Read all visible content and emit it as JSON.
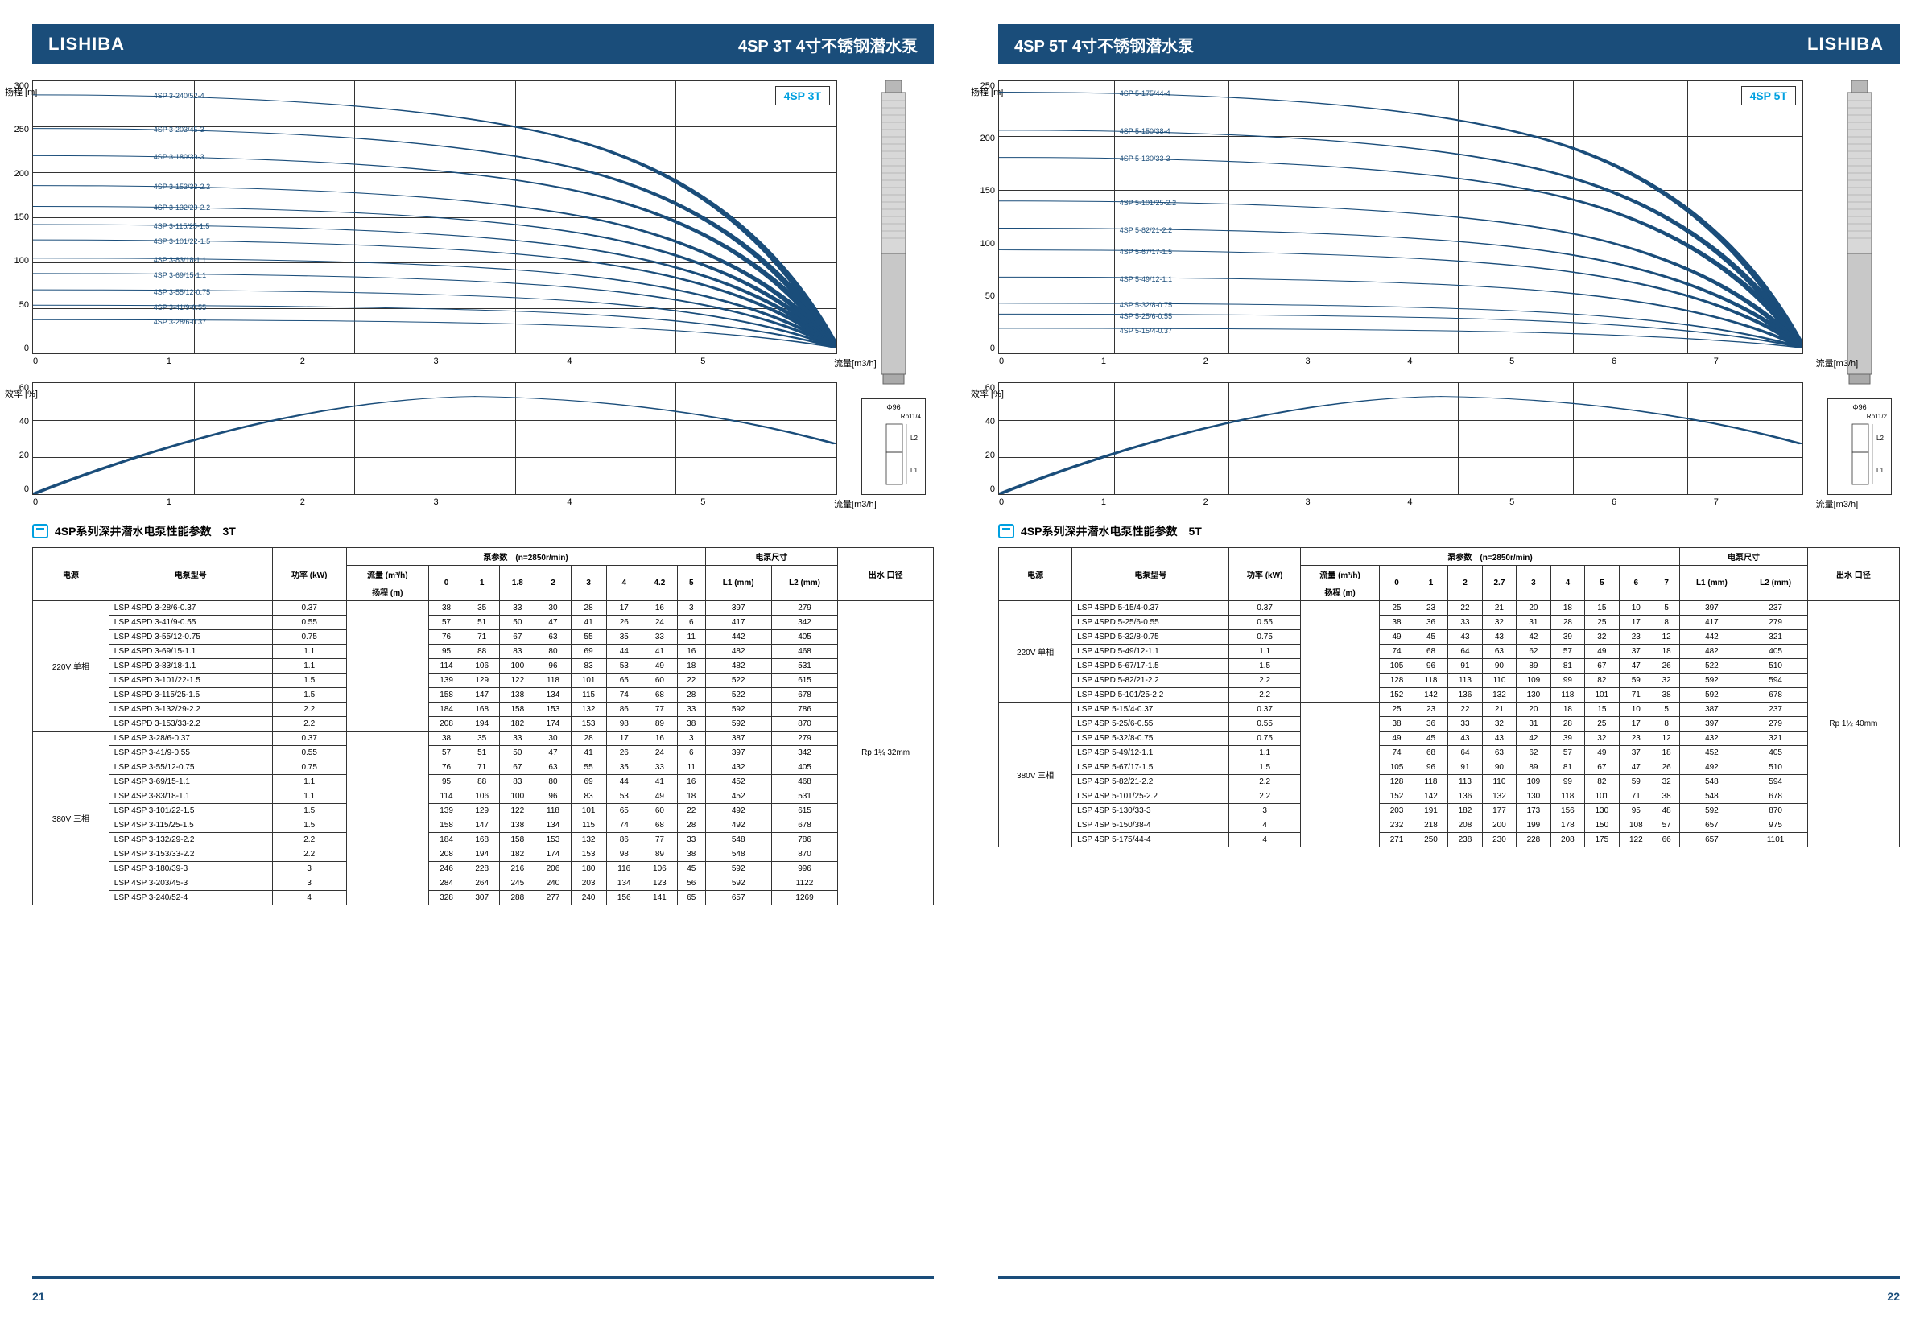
{
  "brand": "LISHIBA",
  "left": {
    "title": "4SP 3T 4寸不锈钢潜水泵",
    "badge": "4SP 3T",
    "section": "4SP系列深井潜水电泵性能参数　3T",
    "page": "21",
    "head_chart": {
      "ylabel": "扬程\n[m]",
      "yticks": [
        "300",
        "250",
        "200",
        "150",
        "100",
        "50",
        "0"
      ],
      "xticks": [
        "0",
        "1",
        "2",
        "3",
        "4",
        "5"
      ],
      "xlabel": "流量[m3/h]",
      "curves": [
        {
          "label": "4SP 3-240/52-4",
          "y0": 285
        },
        {
          "label": "4SP 3-203/45-3",
          "y0": 248
        },
        {
          "label": "4SP 3-180/39-3",
          "y0": 218
        },
        {
          "label": "4SP 3-153/33-2.2",
          "y0": 185
        },
        {
          "label": "4SP 3-132/29-2.2",
          "y0": 162
        },
        {
          "label": "4SP 3-115/25-1.5",
          "y0": 142
        },
        {
          "label": "4SP 3-101/22-1.5",
          "y0": 125
        },
        {
          "label": "4SP 3-83/18-1.1",
          "y0": 105
        },
        {
          "label": "4SP 3-69/15-1.1",
          "y0": 88
        },
        {
          "label": "4SP 3-55/12-0.75",
          "y0": 70
        },
        {
          "label": "4SP 3-41/9-0.55",
          "y0": 53
        },
        {
          "label": "4SP 3-28/6-0.37",
          "y0": 37
        }
      ]
    },
    "eff_chart": {
      "ylabel": "效率\n[%]",
      "yticks": [
        "60",
        "40",
        "20",
        "0"
      ],
      "xticks": [
        "0",
        "1",
        "2",
        "3",
        "4",
        "5"
      ],
      "xlabel": "流量[m3/h]"
    },
    "dim": {
      "phi": "Φ96",
      "rp": "Rp11/4",
      "l1": "L1",
      "l2": "L2"
    },
    "table": {
      "h1": {
        "power": "电源",
        "model": "电泵型号",
        "kw": "功率\n(kW)",
        "pump": "泵参数　(n=2850r/min)",
        "dim": "电泵尺寸",
        "flow": "流量\n(m³/h)",
        "head": "扬程\n(m)",
        "l1": "L1\n(mm)",
        "l2": "L2\n(mm)",
        "outlet": "出水\n口径"
      },
      "flowcols": [
        "0",
        "1",
        "1.8",
        "2",
        "3",
        "4",
        "4.2",
        "5"
      ],
      "groups": [
        {
          "power": "220V\n单相",
          "outlet": "Rp 1¼\n32mm",
          "rows": [
            [
              "LSP 4SPD 3-28/6-0.37",
              "0.37",
              "38",
              "35",
              "33",
              "30",
              "28",
              "17",
              "16",
              "3",
              "397",
              "279"
            ],
            [
              "LSP 4SPD 3-41/9-0.55",
              "0.55",
              "57",
              "51",
              "50",
              "47",
              "41",
              "26",
              "24",
              "6",
              "417",
              "342"
            ],
            [
              "LSP 4SPD 3-55/12-0.75",
              "0.75",
              "76",
              "71",
              "67",
              "63",
              "55",
              "35",
              "33",
              "11",
              "442",
              "405"
            ],
            [
              "LSP 4SPD 3-69/15-1.1",
              "1.1",
              "95",
              "88",
              "83",
              "80",
              "69",
              "44",
              "41",
              "16",
              "482",
              "468"
            ],
            [
              "LSP 4SPD 3-83/18-1.1",
              "1.1",
              "114",
              "106",
              "100",
              "96",
              "83",
              "53",
              "49",
              "18",
              "482",
              "531"
            ],
            [
              "LSP 4SPD 3-101/22-1.5",
              "1.5",
              "139",
              "129",
              "122",
              "118",
              "101",
              "65",
              "60",
              "22",
              "522",
              "615"
            ],
            [
              "LSP 4SPD 3-115/25-1.5",
              "1.5",
              "158",
              "147",
              "138",
              "134",
              "115",
              "74",
              "68",
              "28",
              "522",
              "678"
            ],
            [
              "LSP 4SPD 3-132/29-2.2",
              "2.2",
              "184",
              "168",
              "158",
              "153",
              "132",
              "86",
              "77",
              "33",
              "592",
              "786"
            ],
            [
              "LSP 4SPD 3-153/33-2.2",
              "2.2",
              "208",
              "194",
              "182",
              "174",
              "153",
              "98",
              "89",
              "38",
              "592",
              "870"
            ]
          ]
        },
        {
          "power": "380V\n三相",
          "rows": [
            [
              "LSP 4SP 3-28/6-0.37",
              "0.37",
              "38",
              "35",
              "33",
              "30",
              "28",
              "17",
              "16",
              "3",
              "387",
              "279"
            ],
            [
              "LSP 4SP 3-41/9-0.55",
              "0.55",
              "57",
              "51",
              "50",
              "47",
              "41",
              "26",
              "24",
              "6",
              "397",
              "342"
            ],
            [
              "LSP 4SP 3-55/12-0.75",
              "0.75",
              "76",
              "71",
              "67",
              "63",
              "55",
              "35",
              "33",
              "11",
              "432",
              "405"
            ],
            [
              "LSP 4SP 3-69/15-1.1",
              "1.1",
              "95",
              "88",
              "83",
              "80",
              "69",
              "44",
              "41",
              "16",
              "452",
              "468"
            ],
            [
              "LSP 4SP 3-83/18-1.1",
              "1.1",
              "114",
              "106",
              "100",
              "96",
              "83",
              "53",
              "49",
              "18",
              "452",
              "531"
            ],
            [
              "LSP 4SP 3-101/22-1.5",
              "1.5",
              "139",
              "129",
              "122",
              "118",
              "101",
              "65",
              "60",
              "22",
              "492",
              "615"
            ],
            [
              "LSP 4SP 3-115/25-1.5",
              "1.5",
              "158",
              "147",
              "138",
              "134",
              "115",
              "74",
              "68",
              "28",
              "492",
              "678"
            ],
            [
              "LSP 4SP 3-132/29-2.2",
              "2.2",
              "184",
              "168",
              "158",
              "153",
              "132",
              "86",
              "77",
              "33",
              "548",
              "786"
            ],
            [
              "LSP 4SP 3-153/33-2.2",
              "2.2",
              "208",
              "194",
              "182",
              "174",
              "153",
              "98",
              "89",
              "38",
              "548",
              "870"
            ],
            [
              "LSP 4SP 3-180/39-3",
              "3",
              "246",
              "228",
              "216",
              "206",
              "180",
              "116",
              "106",
              "45",
              "592",
              "996"
            ],
            [
              "LSP 4SP 3-203/45-3",
              "3",
              "284",
              "264",
              "245",
              "240",
              "203",
              "134",
              "123",
              "56",
              "592",
              "1122"
            ],
            [
              "LSP 4SP 3-240/52-4",
              "4",
              "328",
              "307",
              "288",
              "277",
              "240",
              "156",
              "141",
              "65",
              "657",
              "1269"
            ]
          ]
        }
      ]
    }
  },
  "right": {
    "title": "4SP 5T 4寸不锈钢潜水泵",
    "badge": "4SP 5T",
    "section": "4SP系列深井潜水电泵性能参数　5T",
    "page": "22",
    "head_chart": {
      "ylabel": "扬程\n[m]",
      "yticks": [
        "250",
        "200",
        "150",
        "100",
        "50",
        "0"
      ],
      "xticks": [
        "0",
        "1",
        "2",
        "3",
        "4",
        "5",
        "6",
        "7"
      ],
      "xlabel": "流量[m3/h]",
      "curves": [
        {
          "label": "4SP 5-175/44-4",
          "y0": 240
        },
        {
          "label": "4SP 5-150/38-4",
          "y0": 205
        },
        {
          "label": "4SP 5-130/33-3",
          "y0": 180
        },
        {
          "label": "4SP 5-101/25-2.2",
          "y0": 140
        },
        {
          "label": "4SP 5-82/21-2.2",
          "y0": 115
        },
        {
          "label": "4SP 5-67/17-1.5",
          "y0": 95
        },
        {
          "label": "4SP 5-49/12-1.1",
          "y0": 70
        },
        {
          "label": "4SP 5-32/8-0.75",
          "y0": 46
        },
        {
          "label": "4SP 5-25/6-0.55",
          "y0": 36
        },
        {
          "label": "4SP 5-15/4-0.37",
          "y0": 23
        }
      ]
    },
    "eff_chart": {
      "ylabel": "效率\n[%]",
      "yticks": [
        "60",
        "40",
        "20",
        "0"
      ],
      "xticks": [
        "0",
        "1",
        "2",
        "3",
        "4",
        "5",
        "6",
        "7"
      ],
      "xlabel": "流量[m3/h]"
    },
    "dim": {
      "phi": "Φ96",
      "rp": "Rp11/2",
      "l1": "L1",
      "l2": "L2"
    },
    "table": {
      "h1": {
        "power": "电源",
        "model": "电泵型号",
        "kw": "功率\n(kW)",
        "pump": "泵参数　(n=2850r/min)",
        "dim": "电泵尺寸",
        "flow": "流量\n(m³/h)",
        "head": "扬程\n(m)",
        "l1": "L1\n(mm)",
        "l2": "L2\n(mm)",
        "outlet": "出水\n口径"
      },
      "flowcols": [
        "0",
        "1",
        "2",
        "2.7",
        "3",
        "4",
        "5",
        "6",
        "7"
      ],
      "groups": [
        {
          "power": "220V\n单相",
          "outlet": "Rp 1½\n40mm",
          "rows": [
            [
              "LSP 4SPD 5-15/4-0.37",
              "0.37",
              "25",
              "23",
              "22",
              "21",
              "20",
              "18",
              "15",
              "10",
              "5",
              "397",
              "237"
            ],
            [
              "LSP 4SPD 5-25/6-0.55",
              "0.55",
              "38",
              "36",
              "33",
              "32",
              "31",
              "28",
              "25",
              "17",
              "8",
              "417",
              "279"
            ],
            [
              "LSP 4SPD 5-32/8-0.75",
              "0.75",
              "49",
              "45",
              "43",
              "43",
              "42",
              "39",
              "32",
              "23",
              "12",
              "442",
              "321"
            ],
            [
              "LSP 4SPD 5-49/12-1.1",
              "1.1",
              "74",
              "68",
              "64",
              "63",
              "62",
              "57",
              "49",
              "37",
              "18",
              "482",
              "405"
            ],
            [
              "LSP 4SPD 5-67/17-1.5",
              "1.5",
              "105",
              "96",
              "91",
              "90",
              "89",
              "81",
              "67",
              "47",
              "26",
              "522",
              "510"
            ],
            [
              "LSP 4SPD 5-82/21-2.2",
              "2.2",
              "128",
              "118",
              "113",
              "110",
              "109",
              "99",
              "82",
              "59",
              "32",
              "592",
              "594"
            ],
            [
              "LSP 4SPD 5-101/25-2.2",
              "2.2",
              "152",
              "142",
              "136",
              "132",
              "130",
              "118",
              "101",
              "71",
              "38",
              "592",
              "678"
            ]
          ]
        },
        {
          "power": "380V\n三相",
          "rows": [
            [
              "LSP 4SP 5-15/4-0.37",
              "0.37",
              "25",
              "23",
              "22",
              "21",
              "20",
              "18",
              "15",
              "10",
              "5",
              "387",
              "237"
            ],
            [
              "LSP 4SP 5-25/6-0.55",
              "0.55",
              "38",
              "36",
              "33",
              "32",
              "31",
              "28",
              "25",
              "17",
              "8",
              "397",
              "279"
            ],
            [
              "LSP 4SP 5-32/8-0.75",
              "0.75",
              "49",
              "45",
              "43",
              "43",
              "42",
              "39",
              "32",
              "23",
              "12",
              "432",
              "321"
            ],
            [
              "LSP 4SP 5-49/12-1.1",
              "1.1",
              "74",
              "68",
              "64",
              "63",
              "62",
              "57",
              "49",
              "37",
              "18",
              "452",
              "405"
            ],
            [
              "LSP 4SP 5-67/17-1.5",
              "1.5",
              "105",
              "96",
              "91",
              "90",
              "89",
              "81",
              "67",
              "47",
              "26",
              "492",
              "510"
            ],
            [
              "LSP 4SP 5-82/21-2.2",
              "2.2",
              "128",
              "118",
              "113",
              "110",
              "109",
              "99",
              "82",
              "59",
              "32",
              "548",
              "594"
            ],
            [
              "LSP 4SP 5-101/25-2.2",
              "2.2",
              "152",
              "142",
              "136",
              "132",
              "130",
              "118",
              "101",
              "71",
              "38",
              "548",
              "678"
            ],
            [
              "LSP 4SP 5-130/33-3",
              "3",
              "203",
              "191",
              "182",
              "177",
              "173",
              "156",
              "130",
              "95",
              "48",
              "592",
              "870"
            ],
            [
              "LSP 4SP 5-150/38-4",
              "4",
              "232",
              "218",
              "208",
              "200",
              "199",
              "178",
              "150",
              "108",
              "57",
              "657",
              "975"
            ],
            [
              "LSP 4SP 5-175/44-4",
              "4",
              "271",
              "250",
              "238",
              "230",
              "228",
              "208",
              "175",
              "122",
              "66",
              "657",
              "1101"
            ]
          ]
        }
      ]
    }
  }
}
